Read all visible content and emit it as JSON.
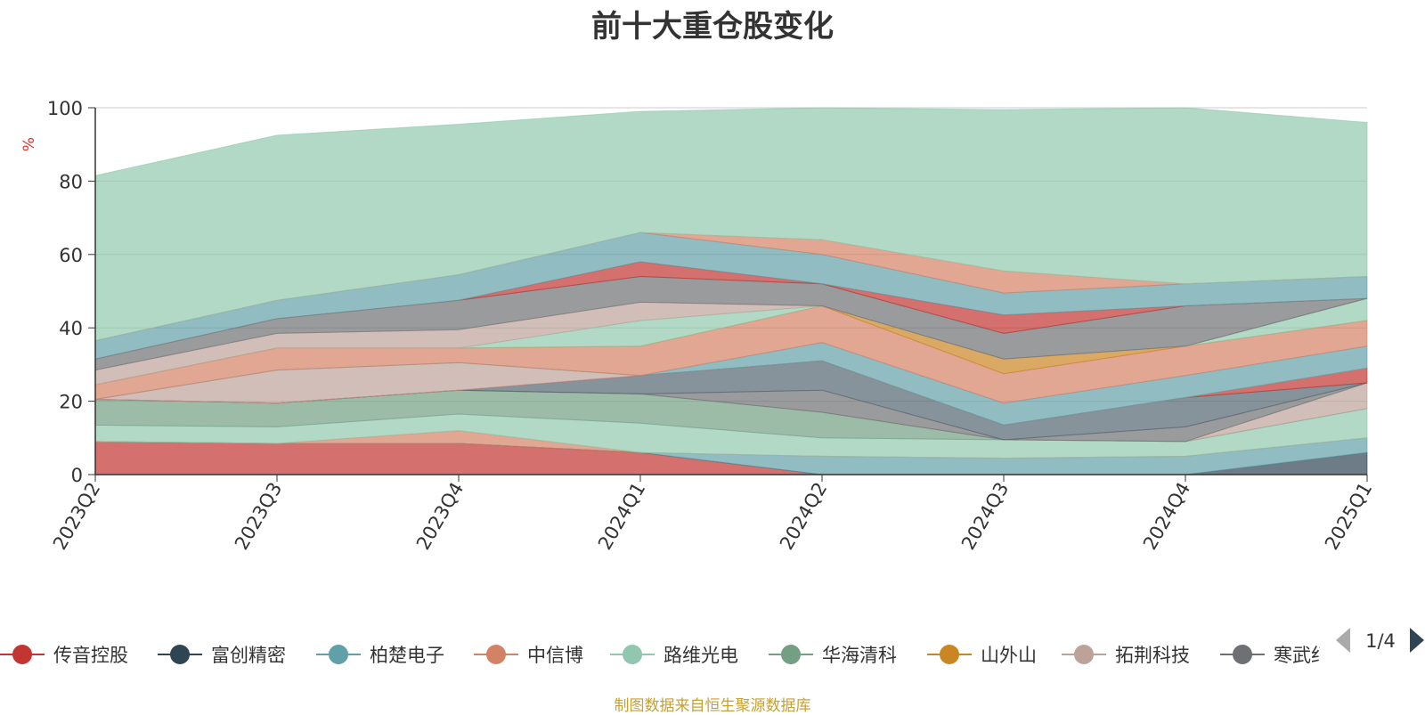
{
  "chart_data": {
    "type": "area",
    "stacked": true,
    "title": "前十大重仓股变化",
    "ylabel": "%",
    "ylim": [
      0,
      100
    ],
    "yticks": [
      "0",
      "20",
      "40",
      "60",
      "80",
      "100"
    ],
    "categories": [
      "2023Q2",
      "2023Q3",
      "2023Q4",
      "2024Q1",
      "2024Q2",
      "2024Q3",
      "2024Q4",
      "2025Q1"
    ],
    "grid": true,
    "legend_position": "bottom",
    "legend_page": "1/4",
    "series": [
      {
        "name": "传音控股",
        "color": "#c23531",
        "values": [
          9,
          8.5,
          8.5,
          6,
          0,
          0,
          0,
          0
        ]
      },
      {
        "name": "",
        "color": "#2f4554",
        "values": [
          0,
          0,
          0,
          0,
          0,
          0,
          0,
          6
        ]
      },
      {
        "name": "",
        "color": "#61a0a8",
        "values": [
          0,
          0,
          0,
          0,
          5,
          4.5,
          5,
          4
        ]
      },
      {
        "name": "",
        "color": "#d48265",
        "values": [
          0,
          0,
          3.5,
          0,
          0,
          0,
          0,
          0
        ]
      },
      {
        "name": "",
        "color": "#91c7ae",
        "values": [
          4.5,
          4.5,
          4.5,
          8,
          5,
          5,
          4,
          8
        ]
      },
      {
        "name": "",
        "color": "#749f83",
        "values": [
          7,
          6.5,
          6.5,
          8,
          7,
          0,
          0,
          0
        ]
      },
      {
        "name": "",
        "color": "#bda29a",
        "values": [
          0,
          0,
          0,
          0,
          0,
          0,
          0,
          7
        ]
      },
      {
        "name": "",
        "color": "#6e7074",
        "values": [
          0,
          0,
          0,
          0,
          6,
          0,
          4,
          0
        ]
      },
      {
        "name": "",
        "color": "#546570",
        "values": [
          0,
          0,
          0,
          5,
          8,
          4,
          8,
          0
        ]
      },
      {
        "name": "",
        "color": "#c23531",
        "values": [
          0,
          0,
          0,
          0,
          0,
          0,
          0,
          4
        ]
      },
      {
        "name": "",
        "color": "#bda29a",
        "values": [
          0,
          9,
          7.5,
          0,
          0,
          0,
          0,
          0
        ]
      },
      {
        "name": "",
        "color": "#61a0a8",
        "values": [
          0,
          0,
          0,
          0,
          5,
          6,
          6,
          6
        ]
      },
      {
        "name": "",
        "color": "#d48265",
        "values": [
          4,
          6,
          4,
          8,
          10,
          8,
          8,
          7
        ]
      },
      {
        "name": "",
        "color": "#ca8622",
        "values": [
          0,
          0,
          0,
          0,
          0,
          4,
          0,
          0
        ]
      },
      {
        "name": "",
        "color": "#91c7ae",
        "values": [
          0,
          0,
          0,
          7,
          0,
          0,
          0,
          6
        ]
      },
      {
        "name": "",
        "color": "#bda29a",
        "values": [
          4,
          4,
          5,
          5,
          0,
          0,
          0,
          0
        ]
      },
      {
        "name": "",
        "color": "#6e7074",
        "values": [
          3,
          4,
          8,
          7,
          6,
          7,
          11,
          0
        ]
      },
      {
        "name": "",
        "color": "#c23531",
        "values": [
          0,
          0,
          0,
          4,
          0,
          5,
          0,
          0
        ]
      },
      {
        "name": "",
        "color": "#61a0a8",
        "values": [
          5,
          5,
          7,
          8,
          8,
          6,
          6,
          6
        ]
      },
      {
        "name": "",
        "color": "#d48265",
        "values": [
          0,
          0,
          0,
          0,
          4,
          6,
          0,
          0
        ]
      },
      {
        "name": "",
        "color": "#91c7ae",
        "values": [
          45,
          45,
          41,
          33,
          36,
          44,
          48,
          42
        ]
      }
    ]
  },
  "legend": {
    "items": [
      {
        "name": "传音控股",
        "color": "#c23531"
      },
      {
        "name": "富创精密",
        "color": "#2f4554"
      },
      {
        "name": "柏楚电子",
        "color": "#61a0a8"
      },
      {
        "name": "中信博",
        "color": "#d48265"
      },
      {
        "name": "路维光电",
        "color": "#91c7ae"
      },
      {
        "name": "华海清科",
        "color": "#749f83"
      },
      {
        "name": "山外山",
        "color": "#ca8622"
      },
      {
        "name": "拓荆科技",
        "color": "#bda29a"
      },
      {
        "name": "寒武纪",
        "color": "#6e7074"
      }
    ],
    "page": "1/4"
  },
  "footer": {
    "note": "制图数据来自恒生聚源数据库"
  }
}
